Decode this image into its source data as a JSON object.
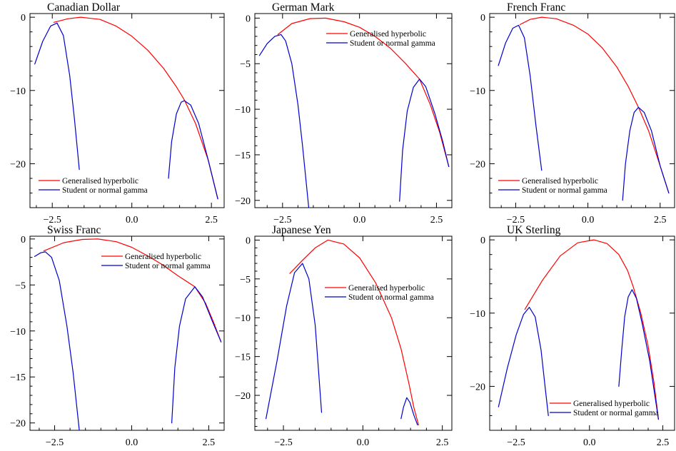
{
  "legend_labels": [
    "Generalised hyperbolic",
    "Student or normal gamma"
  ],
  "colors": {
    "Generalised hyperbolic": "#ff0000",
    "Student or normal gamma": "#0000cc"
  },
  "chart_data": [
    {
      "type": "line",
      "title": "Canadian Dollar",
      "xlim": [
        -3.2,
        2.9
      ],
      "ylim": [
        -26,
        0.5
      ],
      "xticks": [
        -2.5,
        0.0,
        2.5
      ],
      "xtick_labels": [
        "−2.5",
        "0.0",
        "2.5"
      ],
      "yticks": [
        0,
        -10,
        -20
      ],
      "ytick_labels": [
        "0",
        "−10",
        "−20"
      ],
      "legend_placement": "bottom-left",
      "series": [
        {
          "name": "Generalised hyperbolic",
          "segments": [
            [
              [
                -2.45,
                -0.7
              ],
              [
                -2.0,
                -0.2
              ],
              [
                -1.6,
                0.0
              ],
              [
                -1.0,
                -0.3
              ],
              [
                -0.5,
                -1.2
              ],
              [
                0.0,
                -2.6
              ],
              [
                0.5,
                -4.5
              ],
              [
                1.0,
                -7.0
              ],
              [
                1.4,
                -9.5
              ],
              [
                1.65,
                -11.3
              ],
              [
                2.0,
                -14.5
              ],
              [
                2.4,
                -19.5
              ],
              [
                2.7,
                -24.8
              ]
            ]
          ]
        },
        {
          "name": "Student or normal gamma",
          "segments": [
            [
              [
                -3.05,
                -6.4
              ],
              [
                -2.8,
                -3.3
              ],
              [
                -2.55,
                -1.2
              ],
              [
                -2.35,
                -0.8
              ],
              [
                -2.15,
                -2.5
              ],
              [
                -1.95,
                -8.0
              ],
              [
                -1.8,
                -14.0
              ],
              [
                -1.65,
                -20.8
              ]
            ],
            [
              [
                1.15,
                -22.0
              ],
              [
                1.25,
                -17.0
              ],
              [
                1.4,
                -13.2
              ],
              [
                1.55,
                -11.6
              ],
              [
                1.65,
                -11.4
              ],
              [
                1.85,
                -12.0
              ],
              [
                2.1,
                -14.5
              ],
              [
                2.4,
                -19.5
              ],
              [
                2.7,
                -24.8
              ]
            ]
          ]
        }
      ]
    },
    {
      "type": "line",
      "title": "German Mark",
      "xlim": [
        -3.4,
        3.0
      ],
      "ylim": [
        -20.8,
        0.5
      ],
      "xticks": [
        -2.5,
        0.0,
        2.5
      ],
      "xtick_labels": [
        "−2.5",
        "0.0",
        "2.5"
      ],
      "yticks": [
        0,
        -5,
        -10,
        -15,
        -20
      ],
      "ytick_labels": [
        "0",
        "−5",
        "−10",
        "−15",
        "−20"
      ],
      "legend_placement": "top-right",
      "series": [
        {
          "name": "Generalised hyperbolic",
          "segments": [
            [
              [
                -2.65,
                -1.8
              ],
              [
                -2.2,
                -0.6
              ],
              [
                -1.6,
                -0.05
              ],
              [
                -1.1,
                0.0
              ],
              [
                -0.5,
                -0.4
              ],
              [
                0.0,
                -1.0
              ],
              [
                0.5,
                -2.0
              ],
              [
                1.0,
                -3.3
              ],
              [
                1.5,
                -5.0
              ],
              [
                1.95,
                -6.7
              ],
              [
                2.3,
                -9.5
              ],
              [
                2.6,
                -12.5
              ],
              [
                2.9,
                -16.3
              ]
            ]
          ]
        },
        {
          "name": "Student or normal gamma",
          "segments": [
            [
              [
                -3.25,
                -4.1
              ],
              [
                -3.0,
                -2.8
              ],
              [
                -2.75,
                -2.0
              ],
              [
                -2.55,
                -1.8
              ],
              [
                -2.4,
                -2.5
              ],
              [
                -2.2,
                -5.0
              ],
              [
                -2.0,
                -9.5
              ],
              [
                -1.85,
                -14.0
              ],
              [
                -1.65,
                -20.8
              ]
            ],
            [
              [
                1.3,
                -20.1
              ],
              [
                1.4,
                -14.5
              ],
              [
                1.55,
                -10.2
              ],
              [
                1.75,
                -7.6
              ],
              [
                1.95,
                -6.7
              ],
              [
                2.15,
                -7.5
              ],
              [
                2.45,
                -10.5
              ],
              [
                2.7,
                -13.5
              ],
              [
                2.9,
                -16.3
              ]
            ]
          ]
        }
      ]
    },
    {
      "type": "line",
      "title": "French Franc",
      "xlim": [
        -3.4,
        3.0
      ],
      "ylim": [
        -26,
        0.5
      ],
      "xticks": [
        -2.5,
        0.0,
        2.5
      ],
      "xtick_labels": [
        "−2.5",
        "0.0",
        "2.5"
      ],
      "yticks": [
        0,
        -10,
        -20
      ],
      "ytick_labels": [
        "0",
        "−10",
        "−20"
      ],
      "legend_placement": "bottom-left",
      "series": [
        {
          "name": "Generalised hyperbolic",
          "segments": [
            [
              [
                -2.35,
                -1.0
              ],
              [
                -2.0,
                -0.3
              ],
              [
                -1.6,
                0.0
              ],
              [
                -1.1,
                -0.2
              ],
              [
                -0.5,
                -1.1
              ],
              [
                0.0,
                -2.3
              ],
              [
                0.5,
                -4.2
              ],
              [
                1.0,
                -6.8
              ],
              [
                1.4,
                -9.5
              ],
              [
                1.75,
                -12.3
              ],
              [
                2.1,
                -15.5
              ],
              [
                2.5,
                -20.3
              ],
              [
                2.8,
                -24.0
              ]
            ]
          ]
        },
        {
          "name": "Student or normal gamma",
          "segments": [
            [
              [
                -3.1,
                -6.6
              ],
              [
                -2.85,
                -3.5
              ],
              [
                -2.6,
                -1.5
              ],
              [
                -2.4,
                -1.1
              ],
              [
                -2.2,
                -2.8
              ],
              [
                -2.0,
                -8.0
              ],
              [
                -1.8,
                -14.8
              ],
              [
                -1.6,
                -20.9
              ]
            ],
            [
              [
                1.2,
                -25.0
              ],
              [
                1.3,
                -20.0
              ],
              [
                1.45,
                -15.5
              ],
              [
                1.6,
                -13.0
              ],
              [
                1.75,
                -12.3
              ],
              [
                1.95,
                -13.0
              ],
              [
                2.2,
                -15.5
              ],
              [
                2.5,
                -20.3
              ],
              [
                2.8,
                -24.0
              ]
            ]
          ]
        }
      ]
    },
    {
      "type": "line",
      "title": "Swiss Franc",
      "xlim": [
        -3.3,
        3.0
      ],
      "ylim": [
        -20.8,
        0.3
      ],
      "xticks": [
        -2.5,
        0.0,
        2.5
      ],
      "xtick_labels": [
        "−2.5",
        "0.0",
        "2.5"
      ],
      "yticks": [
        0,
        -5,
        -10,
        -15,
        -20
      ],
      "ytick_labels": [
        "0",
        "−5",
        "−10",
        "−15",
        "−20"
      ],
      "legend_placement": "top-right",
      "series": [
        {
          "name": "Generalised hyperbolic",
          "segments": [
            [
              [
                -2.85,
                -1.3
              ],
              [
                -2.2,
                -0.4
              ],
              [
                -1.6,
                -0.05
              ],
              [
                -1.1,
                0.0
              ],
              [
                -0.5,
                -0.3
              ],
              [
                0.0,
                -0.9
              ],
              [
                0.5,
                -1.8
              ],
              [
                1.0,
                -2.8
              ],
              [
                1.5,
                -4.0
              ],
              [
                2.05,
                -5.2
              ],
              [
                2.4,
                -7.0
              ],
              [
                2.65,
                -9.0
              ],
              [
                2.9,
                -11.2
              ]
            ]
          ]
        },
        {
          "name": "Student or normal gamma",
          "segments": [
            [
              [
                -3.15,
                -1.9
              ],
              [
                -2.95,
                -1.5
              ],
              [
                -2.8,
                -1.4
              ],
              [
                -2.6,
                -2.0
              ],
              [
                -2.35,
                -4.5
              ],
              [
                -2.1,
                -9.5
              ],
              [
                -1.9,
                -14.5
              ],
              [
                -1.7,
                -20.8
              ]
            ],
            [
              [
                1.3,
                -20.0
              ],
              [
                1.4,
                -14.0
              ],
              [
                1.55,
                -9.5
              ],
              [
                1.75,
                -6.5
              ],
              [
                2.05,
                -5.2
              ],
              [
                2.3,
                -6.3
              ],
              [
                2.6,
                -8.8
              ],
              [
                2.9,
                -11.2
              ]
            ]
          ]
        }
      ]
    },
    {
      "type": "line",
      "title": "Japanese Yen",
      "xlim": [
        -3.4,
        2.8
      ],
      "ylim": [
        -24.5,
        0.5
      ],
      "xticks": [
        -2.5,
        0.0,
        2.5
      ],
      "xtick_labels": [
        "−2.5",
        "0.0",
        "2.5"
      ],
      "yticks": [
        0,
        -5,
        -10,
        -15,
        -20
      ],
      "ytick_labels": [
        "0",
        "−5",
        "−10",
        "−15",
        "−20"
      ],
      "legend_placement": "center-right",
      "series": [
        {
          "name": "Generalised hyperbolic",
          "segments": [
            [
              [
                -2.3,
                -4.3
              ],
              [
                -1.9,
                -2.6
              ],
              [
                -1.5,
                -1.0
              ],
              [
                -1.1,
                0.0
              ],
              [
                -0.6,
                -0.5
              ],
              [
                -0.1,
                -2.3
              ],
              [
                0.4,
                -5.5
              ],
              [
                0.9,
                -10.0
              ],
              [
                1.2,
                -14.0
              ],
              [
                1.45,
                -18.5
              ],
              [
                1.6,
                -21.5
              ],
              [
                1.75,
                -23.8
              ]
            ]
          ]
        },
        {
          "name": "Student or normal gamma",
          "segments": [
            [
              [
                -3.05,
                -23.0
              ],
              [
                -2.7,
                -15.5
              ],
              [
                -2.4,
                -8.5
              ],
              [
                -2.15,
                -4.2
              ],
              [
                -1.9,
                -3.0
              ],
              [
                -1.7,
                -5.0
              ],
              [
                -1.5,
                -11.0
              ],
              [
                -1.3,
                -22.2
              ]
            ],
            [
              [
                1.2,
                -23.0
              ],
              [
                1.28,
                -21.5
              ],
              [
                1.38,
                -20.3
              ],
              [
                1.48,
                -20.9
              ],
              [
                1.6,
                -22.5
              ],
              [
                1.72,
                -23.8
              ]
            ]
          ]
        }
      ]
    },
    {
      "type": "line",
      "title": "UK Sterling",
      "xlim": [
        -3.4,
        2.9
      ],
      "ylim": [
        -26,
        0.5
      ],
      "xticks": [
        -2.5,
        0.0,
        2.5
      ],
      "xtick_labels": [
        "−2.5",
        "0.0",
        "2.5"
      ],
      "yticks": [
        0,
        -10,
        -20
      ],
      "ytick_labels": [
        "0",
        "−10",
        "−20"
      ],
      "legend_placement": "bottom-right",
      "series": [
        {
          "name": "Generalised hyperbolic",
          "segments": [
            [
              [
                -2.2,
                -9.5
              ],
              [
                -1.6,
                -5.5
              ],
              [
                -1.0,
                -2.2
              ],
              [
                -0.4,
                -0.4
              ],
              [
                0.15,
                0.0
              ],
              [
                0.6,
                -0.5
              ],
              [
                1.0,
                -2.0
              ],
              [
                1.3,
                -4.2
              ],
              [
                1.5,
                -6.5
              ],
              [
                1.75,
                -10.0
              ],
              [
                2.0,
                -14.5
              ],
              [
                2.2,
                -19.5
              ],
              [
                2.35,
                -24.5
              ]
            ]
          ]
        },
        {
          "name": "Student or normal gamma",
          "segments": [
            [
              [
                -3.1,
                -22.8
              ],
              [
                -2.8,
                -17.5
              ],
              [
                -2.5,
                -13.0
              ],
              [
                -2.25,
                -10.2
              ],
              [
                -2.05,
                -9.2
              ],
              [
                -1.85,
                -10.5
              ],
              [
                -1.65,
                -15.0
              ],
              [
                -1.5,
                -20.5
              ],
              [
                -1.4,
                -24.0
              ]
            ],
            [
              [
                1.0,
                -20.0
              ],
              [
                1.1,
                -15.0
              ],
              [
                1.2,
                -10.5
              ],
              [
                1.32,
                -7.8
              ],
              [
                1.45,
                -6.8
              ],
              [
                1.6,
                -8.0
              ],
              [
                1.8,
                -11.5
              ],
              [
                2.05,
                -16.5
              ],
              [
                2.35,
                -24.5
              ]
            ]
          ]
        }
      ]
    }
  ]
}
